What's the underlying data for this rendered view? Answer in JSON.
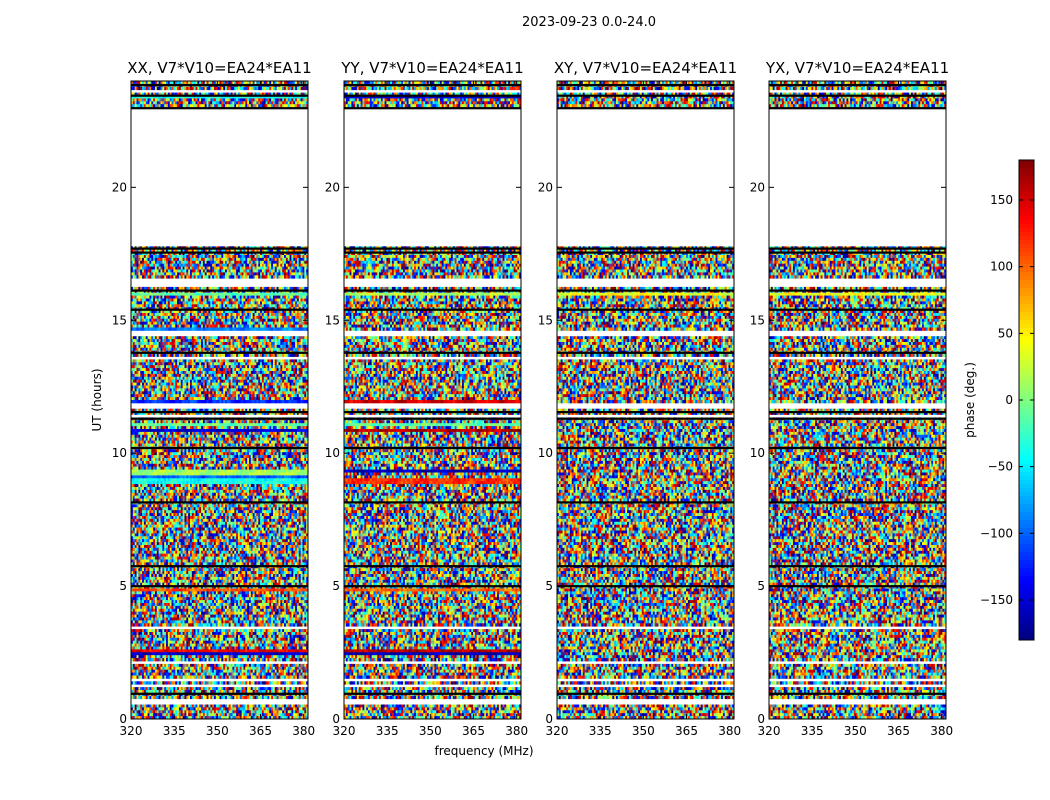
{
  "chart_data": {
    "type": "heatmap",
    "suptitle": "2023-09-23 0.0-24.0",
    "xlabel": "frequency (MHz)",
    "ylabel": "UT (hours)",
    "xlim": [
      320,
      381.5
    ],
    "ylim": [
      0,
      24
    ],
    "xticks": [
      320,
      335,
      350,
      365,
      380
    ],
    "yticks": [
      0,
      5,
      10,
      15,
      20
    ],
    "colorbar": {
      "label": "phase (deg.)",
      "range": [
        -180,
        180
      ],
      "ticks": [
        -150,
        -100,
        -50,
        0,
        50,
        100,
        150
      ],
      "tick_labels": [
        "−150",
        "−100",
        "−50",
        "0",
        "50",
        "100",
        "150"
      ],
      "colormap": "jet"
    },
    "blank_intervals_hours": [
      [
        17.8,
        23.0
      ],
      [
        0.55,
        0.72
      ],
      [
        1.18,
        1.28
      ],
      [
        1.46,
        1.56
      ],
      [
        2.06,
        2.18
      ],
      [
        3.38,
        3.5
      ],
      [
        11.35,
        11.5
      ],
      [
        11.72,
        11.86
      ],
      [
        13.55,
        13.68
      ],
      [
        14.42,
        14.58
      ],
      [
        16.25,
        16.55
      ],
      [
        23.55,
        23.65
      ]
    ],
    "dark_line_hours": [
      0.95,
      5.0,
      5.75,
      8.15,
      10.2,
      11.3,
      11.55,
      13.78,
      15.4,
      16.12,
      17.55,
      17.7,
      22.98,
      23.45,
      23.85
    ],
    "panels": [
      {
        "title": "XX, V7*V10=EA24*EA11",
        "coherent_bands": [
          {
            "t0": 23.35,
            "t1": 23.5,
            "phase": -40
          },
          {
            "t0": 15.95,
            "t1": 16.05,
            "phase": -10
          },
          {
            "t0": 14.65,
            "t1": 14.75,
            "phase": -90
          },
          {
            "t0": 11.85,
            "t1": 12.05,
            "phase": -120
          },
          {
            "t0": 11.0,
            "t1": 11.15,
            "phase": -10
          },
          {
            "t0": 10.85,
            "t1": 10.95,
            "phase": -150
          },
          {
            "t0": 9.2,
            "t1": 9.35,
            "phase": 10
          },
          {
            "t0": 9.05,
            "t1": 9.2,
            "phase": -100
          },
          {
            "t0": 8.85,
            "t1": 9.0,
            "phase": -40
          },
          {
            "t0": 4.85,
            "t1": 4.95,
            "phase": 110
          },
          {
            "t0": 2.55,
            "t1": 2.65,
            "phase": 140
          },
          {
            "t0": 2.45,
            "t1": 2.55,
            "phase": -150
          }
        ]
      },
      {
        "title": "YY, V7*V10=EA24*EA11",
        "coherent_bands": [
          {
            "t0": 23.3,
            "t1": 23.42,
            "phase": -150
          },
          {
            "t0": 15.95,
            "t1": 16.05,
            "phase": 20
          },
          {
            "t0": 11.9,
            "t1": 12.05,
            "phase": 150
          },
          {
            "t0": 11.0,
            "t1": 11.12,
            "phase": -10
          },
          {
            "t0": 10.85,
            "t1": 10.95,
            "phase": 160
          },
          {
            "t0": 9.25,
            "t1": 9.4,
            "phase": -160
          },
          {
            "t0": 8.85,
            "t1": 9.0,
            "phase": 120
          },
          {
            "t0": 4.85,
            "t1": 4.95,
            "phase": 100
          },
          {
            "t0": 2.55,
            "t1": 2.65,
            "phase": 160
          },
          {
            "t0": 2.45,
            "t1": 2.55,
            "phase": -160
          }
        ]
      },
      {
        "title": "XY, V7*V10=EA24*EA11",
        "coherent_bands": [
          {
            "t0": 15.95,
            "t1": 16.05,
            "phase": 40
          }
        ]
      },
      {
        "title": "YX, V7*V10=EA24*EA11",
        "coherent_bands": [
          {
            "t0": 15.95,
            "t1": 16.05,
            "phase": 40
          }
        ]
      }
    ]
  }
}
